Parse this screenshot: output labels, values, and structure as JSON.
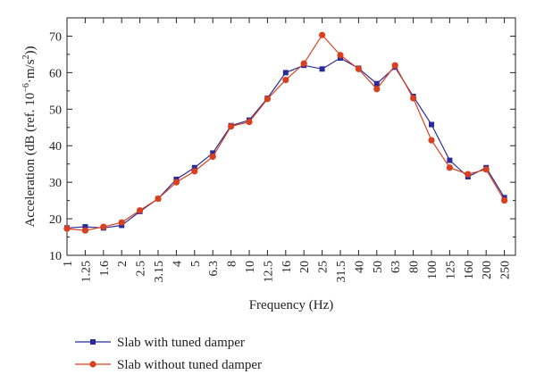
{
  "chart_data": {
    "type": "line",
    "title": "",
    "xlabel": "Frequency (Hz)",
    "ylabel_text": "Acceleration (dB (ref. 10",
    "ylabel_exp1": "−6",
    "ylabel_mid": "·m/s",
    "ylabel_exp2": "2",
    "ylabel_end": "))",
    "ylim": [
      10,
      75
    ],
    "yticks": [
      10,
      20,
      30,
      40,
      50,
      60,
      70
    ],
    "categories": [
      "1",
      "1.25",
      "1.6",
      "2",
      "2.5",
      "3.15",
      "4",
      "5",
      "6.3",
      "8",
      "10",
      "12.5",
      "16",
      "20",
      "25",
      "31.5",
      "40",
      "50",
      "63",
      "80",
      "100",
      "125",
      "160",
      "200",
      "250"
    ],
    "grid": false,
    "legend_position": "bottom-left",
    "series": [
      {
        "name": "Slab with tuned damper",
        "color": "#2b2b9a",
        "marker": "square",
        "values": [
          17.5,
          17.8,
          17.5,
          18.2,
          22.0,
          25.5,
          30.8,
          34.0,
          38.0,
          45.5,
          47.0,
          53.0,
          60.0,
          62.0,
          61.0,
          64.0,
          61.2,
          57.0,
          61.5,
          53.5,
          45.8,
          36.0,
          31.5,
          34.0,
          25.8
        ]
      },
      {
        "name": "Slab without tuned damper",
        "color": "#d8401f",
        "marker": "circle",
        "values": [
          17.3,
          16.8,
          17.8,
          19.0,
          22.3,
          25.5,
          30.0,
          33.0,
          37.0,
          45.3,
          46.5,
          52.8,
          58.0,
          62.5,
          70.3,
          64.8,
          61.0,
          55.5,
          62.0,
          53.0,
          41.5,
          34.0,
          32.2,
          33.5,
          25.0
        ]
      }
    ]
  }
}
